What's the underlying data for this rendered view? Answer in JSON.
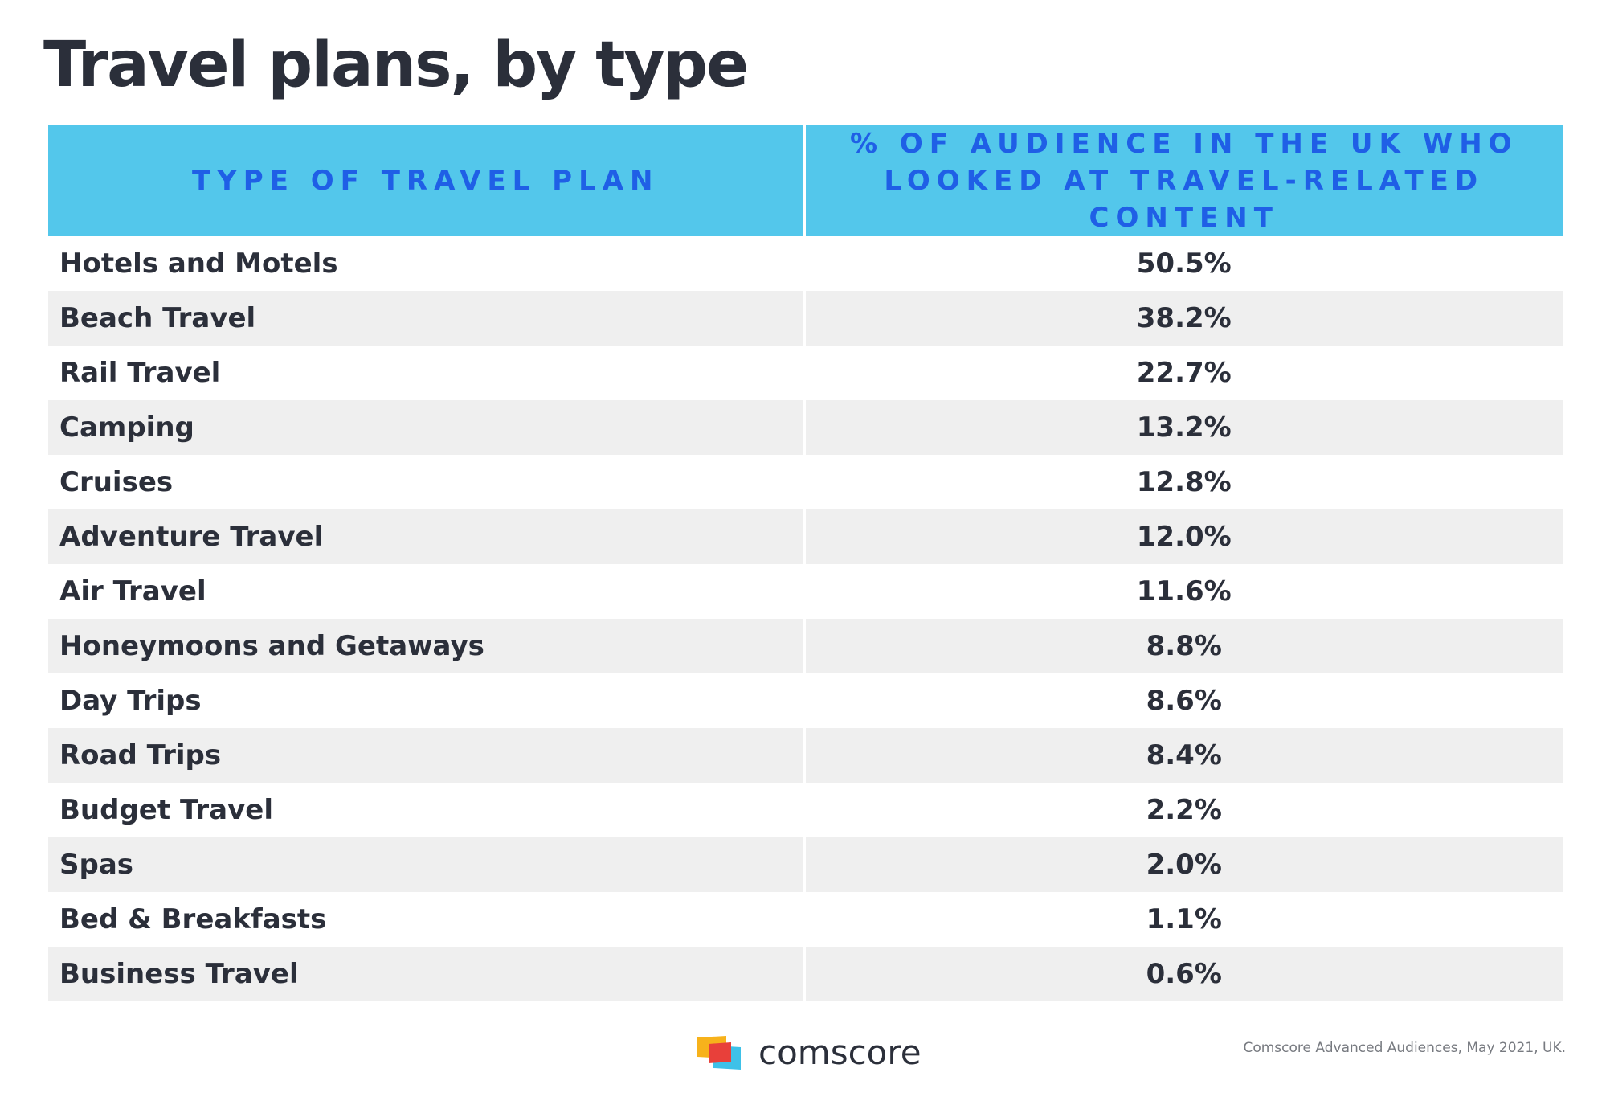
{
  "title": "Travel plans, by type",
  "chart_data": {
    "type": "table",
    "columns": [
      "Type of travel plan",
      "% of audience in the UK who looked at travel-related content"
    ],
    "rows": [
      {
        "type": "Hotels and Motels",
        "value": "50.5%"
      },
      {
        "type": "Beach Travel",
        "value": "38.2%"
      },
      {
        "type": "Rail Travel",
        "value": "22.7%"
      },
      {
        "type": "Camping",
        "value": "13.2%"
      },
      {
        "type": "Cruises",
        "value": "12.8%"
      },
      {
        "type": "Adventure Travel",
        "value": "12.0%"
      },
      {
        "type": "Air Travel",
        "value": "11.6%"
      },
      {
        "type": "Honeymoons and Getaways",
        "value": "8.8%"
      },
      {
        "type": "Day Trips",
        "value": "8.6%"
      },
      {
        "type": "Road Trips",
        "value": "8.4%"
      },
      {
        "type": "Budget Travel",
        "value": "2.2%"
      },
      {
        "type": "Spas",
        "value": "2.0%"
      },
      {
        "type": "Bed & Breakfasts",
        "value": "1.1%"
      },
      {
        "type": "Business Travel",
        "value": "0.6%"
      }
    ]
  },
  "colors": {
    "header_bg": "#53c7eb",
    "header_text": "#1f5fe6",
    "row_alt": "#efefef",
    "text": "#2b2f3a"
  },
  "footer": {
    "logo_text": "comscore",
    "logo_icon": "comscore-logo-icon",
    "source": "Comscore Advanced Audiences, May 2021, UK."
  }
}
